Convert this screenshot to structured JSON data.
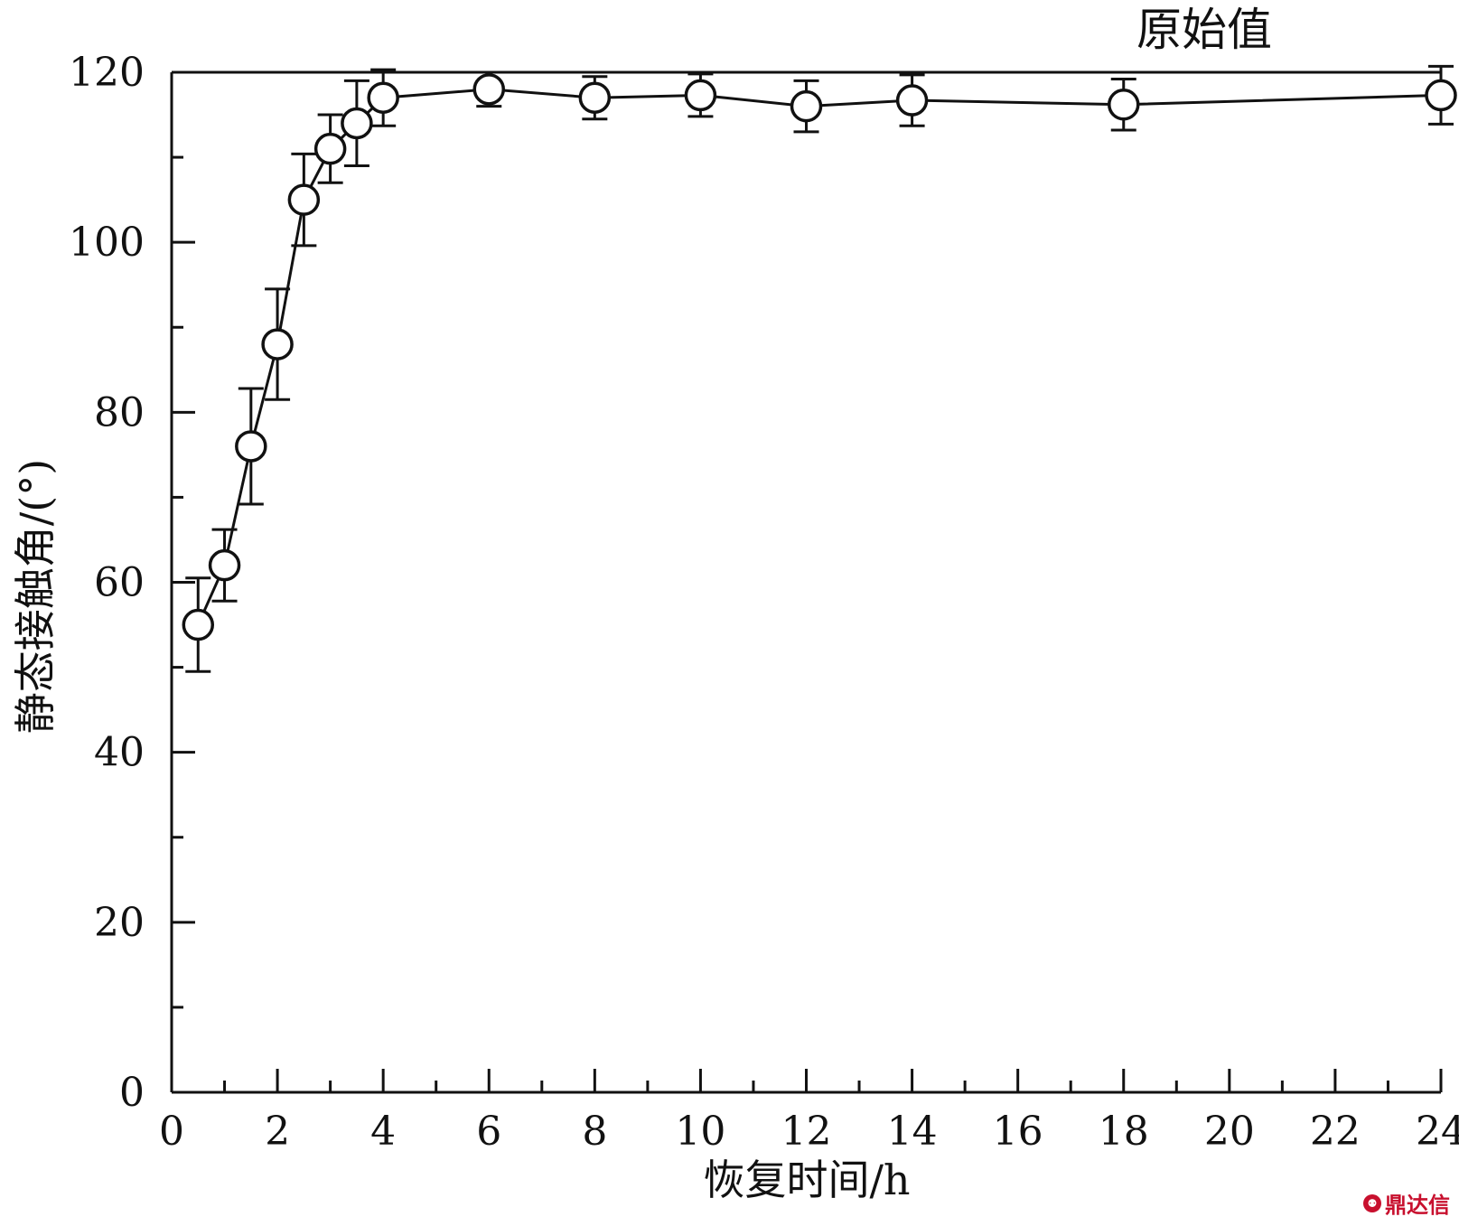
{
  "chart_data": {
    "type": "line",
    "xlabel": "恢复时间/h",
    "ylabel": "静态接触角/(°)",
    "xlim": [
      0,
      24
    ],
    "ylim": [
      0,
      120
    ],
    "x_ticks": [
      0,
      2,
      4,
      6,
      8,
      10,
      12,
      14,
      16,
      18,
      20,
      22,
      24
    ],
    "y_ticks": [
      0,
      20,
      40,
      60,
      80,
      100,
      120
    ],
    "grid": false,
    "legend": "none",
    "series": [
      {
        "marker": "open-circle",
        "x": [
          0.5,
          1,
          1.5,
          2,
          2.5,
          3,
          3.5,
          4,
          6,
          8,
          10,
          12,
          14,
          18,
          24
        ],
        "y": [
          55,
          62,
          76,
          88,
          105,
          111,
          114,
          117,
          118,
          117,
          117.3,
          116,
          116.7,
          116.2,
          117.3
        ],
        "error": [
          5.5,
          4.2,
          6.8,
          6.5,
          5.4,
          4,
          5,
          3.3,
          2,
          2.5,
          2.5,
          3,
          3,
          3,
          3.4
        ]
      }
    ],
    "reference_line": {
      "y": 120,
      "label": "原始值"
    }
  },
  "watermark": {
    "text": "鼎达信",
    "icon": "dingdaxin-logo-icon"
  },
  "colors": {
    "ink": "#111111",
    "watermark": "#c8102e"
  }
}
